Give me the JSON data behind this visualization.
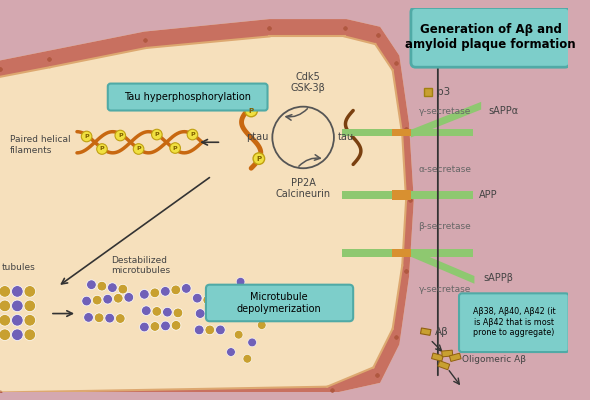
{
  "bg_color": "#d4a8b0",
  "cell_fill": "#f5ddb8",
  "cell_fill2": "#f0d0a0",
  "membrane_color": "#c87060",
  "membrane_inner_line": "#e0b888",
  "teal_color": "#7dceca",
  "teal_edge": "#50aaa6",
  "tau_orange": "#c86810",
  "tau_dark": "#7a4010",
  "p_yellow": "#f0e040",
  "p_edge": "#c0a010",
  "purple_mt": "#7060b8",
  "gold_mt": "#c8a030",
  "green_bar": "#8ec870",
  "orange_bar": "#d89030",
  "arrow_color": "#333333",
  "text_dark": "#444444",
  "text_gray": "#666666",
  "title_text": "Generation of Aβ and\namyloid plaque formation",
  "tau_hyper_text": "Tau hyperphosphorylation",
  "paired_helical_text": "Paired helical\nfilaments",
  "destabilized_text": "Destabilized\nmicrotubules",
  "microtub_depoly_text": "Microtubule\ndepolymerization",
  "cdk5_text": "Cdk5\nGSK-3β",
  "pp2a_text": "PP2A\nCalcineurin",
  "ptau_text": "ptau",
  "tau_text": "tau",
  "p3_text": "p3",
  "gamma_sec_text": "γ-secretase",
  "sappa_text": "sAPPα",
  "alpha_sec_text": "α-secretase",
  "app_text": "APP",
  "beta_sec_text": "β-secretase",
  "sappb_text": "sAPPβ",
  "abeta_box_text": "Aβ38, Aβ40, Aβ42 (it\nis Aβ42 that is most\nprone to aggregate)",
  "abeta_text": "Aβ",
  "oligomeric_text": "Oligomeric Aβ",
  "tubules_text": "tubules"
}
